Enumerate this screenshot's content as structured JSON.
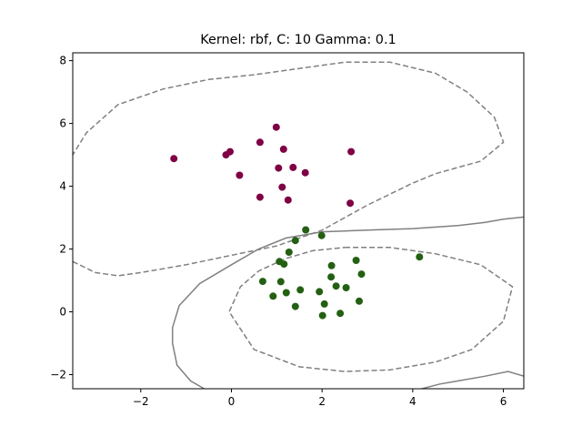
{
  "chart_data": {
    "type": "scatter",
    "title": "Kernel: rbf, C: 10 Gamma: 0.1",
    "xlabel": "",
    "ylabel": "",
    "xlim": [
      -3.5,
      6.45
    ],
    "ylim": [
      -2.45,
      8.25
    ],
    "xticks": [
      -2,
      0,
      2,
      4,
      6
    ],
    "yticks": [
      -2,
      0,
      2,
      4,
      6,
      8
    ],
    "grid": false,
    "series": [
      {
        "color": "#7f0044",
        "points": [
          [
            -1.27,
            4.88
          ],
          [
            -0.03,
            5.1
          ],
          [
            -0.12,
            5.0
          ],
          [
            0.18,
            4.35
          ],
          [
            0.63,
            5.4
          ],
          [
            0.99,
            5.88
          ],
          [
            1.15,
            5.18
          ],
          [
            1.04,
            4.58
          ],
          [
            1.36,
            4.6
          ],
          [
            1.63,
            4.43
          ],
          [
            2.64,
            5.1
          ],
          [
            1.12,
            3.97
          ],
          [
            0.63,
            3.65
          ],
          [
            1.25,
            3.56
          ],
          [
            2.62,
            3.46
          ]
        ]
      },
      {
        "color": "#236012",
        "points": [
          [
            1.64,
            2.61
          ],
          [
            1.99,
            2.43
          ],
          [
            1.41,
            2.27
          ],
          [
            1.27,
            1.9
          ],
          [
            1.06,
            1.6
          ],
          [
            1.16,
            1.52
          ],
          [
            2.21,
            1.47
          ],
          [
            2.75,
            1.64
          ],
          [
            4.15,
            1.75
          ],
          [
            2.2,
            1.11
          ],
          [
            2.87,
            1.2
          ],
          [
            0.69,
            0.97
          ],
          [
            1.09,
            0.96
          ],
          [
            2.31,
            0.82
          ],
          [
            2.53,
            0.77
          ],
          [
            1.52,
            0.7
          ],
          [
            1.21,
            0.61
          ],
          [
            1.94,
            0.64
          ],
          [
            0.92,
            0.5
          ],
          [
            2.82,
            0.34
          ],
          [
            2.05,
            0.25
          ],
          [
            1.41,
            0.17
          ],
          [
            2.4,
            -0.05
          ],
          [
            2.01,
            -0.12
          ]
        ]
      }
    ],
    "contours": {
      "color": "#808080",
      "solid": [
        [
          [
            -0.6,
            -2.45
          ],
          [
            -0.9,
            -2.2
          ],
          [
            -1.2,
            -1.7
          ],
          [
            -1.3,
            -1.0
          ],
          [
            -1.3,
            -0.5
          ],
          [
            -1.15,
            0.2
          ],
          [
            -0.7,
            0.9
          ],
          [
            0.0,
            1.5
          ],
          [
            0.6,
            2.0
          ],
          [
            1.2,
            2.35
          ],
          [
            2.0,
            2.55
          ],
          [
            3.0,
            2.6
          ],
          [
            4.0,
            2.65
          ],
          [
            5.0,
            2.75
          ],
          [
            5.6,
            2.85
          ],
          [
            6.0,
            2.95
          ],
          [
            6.45,
            3.02
          ]
        ],
        [
          [
            4.2,
            -2.45
          ],
          [
            4.6,
            -2.3
          ],
          [
            5.0,
            -2.2
          ],
          [
            5.6,
            -2.05
          ],
          [
            6.1,
            -1.9
          ],
          [
            6.45,
            -2.05
          ]
        ]
      ],
      "dashed": [
        [
          [
            -3.5,
            1.6
          ],
          [
            -3.0,
            1.25
          ],
          [
            -2.5,
            1.15
          ],
          [
            -2.0,
            1.25
          ],
          [
            -1.0,
            1.5
          ],
          [
            0.0,
            1.8
          ],
          [
            1.0,
            2.1
          ],
          [
            2.0,
            2.6
          ],
          [
            3.0,
            3.4
          ],
          [
            4.0,
            4.1
          ],
          [
            4.5,
            4.4
          ],
          [
            5.0,
            4.6
          ],
          [
            5.5,
            4.8
          ],
          [
            6.0,
            5.4
          ],
          [
            5.8,
            6.2
          ],
          [
            5.2,
            7.0
          ],
          [
            4.5,
            7.6
          ],
          [
            3.5,
            7.95
          ],
          [
            2.5,
            7.95
          ],
          [
            1.5,
            7.75
          ],
          [
            0.5,
            7.55
          ],
          [
            -0.5,
            7.4
          ],
          [
            -1.5,
            7.1
          ],
          [
            -2.5,
            6.6
          ],
          [
            -3.2,
            5.7
          ],
          [
            -3.5,
            5.0
          ]
        ],
        [
          [
            2.5,
            2.05
          ],
          [
            3.5,
            2.05
          ],
          [
            4.5,
            1.85
          ],
          [
            5.5,
            1.5
          ],
          [
            6.0,
            1.0
          ],
          [
            6.2,
            0.8
          ],
          [
            6.0,
            -0.3
          ],
          [
            5.3,
            -1.2
          ],
          [
            4.5,
            -1.6
          ],
          [
            3.5,
            -1.85
          ],
          [
            2.5,
            -1.9
          ],
          [
            1.5,
            -1.75
          ],
          [
            0.5,
            -1.2
          ],
          [
            -0.05,
            0.0
          ],
          [
            0.2,
            0.8
          ],
          [
            0.6,
            1.3
          ],
          [
            1.2,
            1.7
          ],
          [
            1.8,
            1.95
          ],
          [
            2.5,
            2.05
          ]
        ]
      ]
    }
  }
}
